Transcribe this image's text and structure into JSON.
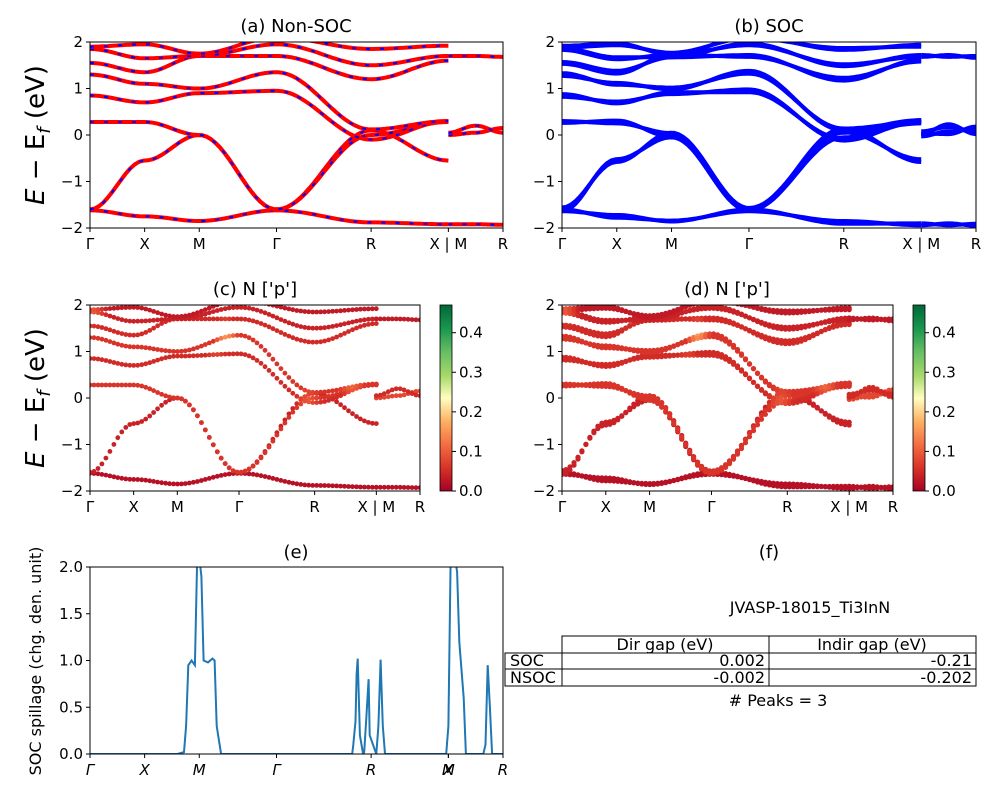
{
  "figure": {
    "material_id": "JVASP-18015_Ti3InN",
    "ylabel_energy_parts": [
      "E",
      " − E",
      "f",
      " (eV)"
    ],
    "colors": {
      "soc_blue": "#0000ff",
      "nsoc_red": "#ff0000",
      "spillage_line": "#1f77b4"
    }
  },
  "band_axes": {
    "ylim": [
      -2,
      2
    ],
    "yticks": [
      "−2",
      "−1",
      "0",
      "1",
      "2"
    ],
    "kpath_labels": [
      "Γ",
      "X",
      "M",
      "Γ",
      "R",
      "X | M",
      "R"
    ],
    "kpath_positions": [
      0,
      0.5,
      1.0,
      1.707,
      2.573,
      3.28,
      3.78
    ]
  },
  "panels": {
    "a": {
      "title": "(a) Non-SOC"
    },
    "b": {
      "title": "(b) SOC"
    },
    "c": {
      "title": "(c)  N ['p']"
    },
    "d": {
      "title": "(d) N ['p']"
    },
    "e": {
      "title": "(e)",
      "ylabel": "SOC spillage (chg. den. unit)"
    },
    "f": {
      "title": "(f)"
    }
  },
  "colorbar": {
    "range": [
      0.0,
      0.47
    ],
    "ticks": [
      "0.0",
      "0.1",
      "0.2",
      "0.3",
      "0.4"
    ],
    "tick_values": [
      0.0,
      0.1,
      0.2,
      0.3,
      0.4
    ]
  },
  "gap_table": {
    "header": [
      "",
      "Dir gap (eV)",
      "Indir gap (eV)"
    ],
    "rows": [
      {
        "label": "SOC",
        "dir": "0.002",
        "indir": "-0.21"
      },
      {
        "label": "NSOC",
        "dir": "-0.002",
        "indir": "-0.202"
      }
    ],
    "peaks_text": "# Peaks = 3"
  },
  "chart_data": [
    {
      "id": "band-structure",
      "type": "line",
      "title": "(a) Non-SOC / (b) SOC",
      "ylabel": "E − E_f (eV)",
      "ylim": [
        -2,
        2
      ],
      "bands": [
        {
          "name": "b1",
          "k": [
            0,
            0.5,
            1.0,
            1.707,
            2.573,
            3.28
          ],
          "E": [
            -1.62,
            -1.75,
            -1.85,
            -1.62,
            -1.88,
            -1.92
          ],
          "dE": [
            0.02,
            -0.03,
            0.01,
            -0.02,
            0.03,
            -0.02
          ]
        },
        {
          "name": "b2",
          "k": [
            0,
            0.5,
            1.0,
            1.707,
            2.573,
            3.28
          ],
          "E": [
            -1.6,
            -0.55,
            0.0,
            -1.6,
            0.1,
            -0.55
          ],
          "dE": [
            0.04,
            -0.03,
            0.05,
            0.03,
            -0.04,
            0.03
          ]
        },
        {
          "name": "b3",
          "k": [
            0,
            0.5,
            1.0,
            1.707,
            2.573,
            3.28
          ],
          "E": [
            0.28,
            0.28,
            0.0,
            -1.6,
            0.0,
            0.28
          ],
          "dE": [
            -0.02,
            0.03,
            -0.04,
            0.02,
            0.05,
            -0.03
          ]
        },
        {
          "name": "b4",
          "k": [
            0,
            0.5,
            1.0,
            1.707,
            2.573,
            3.28
          ],
          "E": [
            0.85,
            0.7,
            0.9,
            0.95,
            -0.1,
            0.3
          ],
          "dE": [
            0.03,
            -0.02,
            0.02,
            -0.03,
            0.02,
            -0.02
          ]
        },
        {
          "name": "b5",
          "k": [
            0,
            0.5,
            1.0,
            1.707,
            2.573,
            3.28
          ],
          "E": [
            1.3,
            1.1,
            1.0,
            1.35,
            0.12,
            0.3
          ],
          "dE": [
            -0.03,
            0.02,
            -0.02,
            0.03,
            -0.02,
            0.02
          ]
        },
        {
          "name": "b6",
          "k": [
            0,
            0.5,
            1.0,
            1.707,
            2.573,
            3.28
          ],
          "E": [
            1.55,
            1.35,
            1.7,
            1.7,
            1.2,
            1.6
          ],
          "dE": [
            0.02,
            0.03,
            -0.03,
            0.02,
            -0.03,
            0.02
          ]
        },
        {
          "name": "b7",
          "k": [
            0,
            0.5,
            1.0,
            1.707,
            2.573,
            3.28
          ],
          "E": [
            1.85,
            1.65,
            1.7,
            1.95,
            1.5,
            1.7
          ],
          "dE": [
            -0.02,
            -0.02,
            0.03,
            -0.02,
            0.02,
            -0.02
          ]
        },
        {
          "name": "b8",
          "k": [
            0,
            0.5,
            1.0,
            1.707,
            2.573,
            3.28
          ],
          "E": [
            1.9,
            1.95,
            1.75,
            2.1,
            1.85,
            1.92
          ],
          "dE": [
            0.02,
            0.02,
            -0.02,
            0.02,
            -0.02,
            0.02
          ]
        },
        {
          "name": "r1",
          "k": [
            3.28,
            3.53,
            3.78
          ],
          "E": [
            -1.92,
            -1.92,
            -1.93
          ],
          "dE": [
            0.02,
            -0.02,
            0.02
          ]
        },
        {
          "name": "r2",
          "k": [
            3.28,
            3.53,
            3.78
          ],
          "E": [
            0.0,
            0.05,
            0.15
          ],
          "dE": [
            -0.03,
            0.03,
            -0.03
          ]
        },
        {
          "name": "r3",
          "k": [
            3.28,
            3.53,
            3.78
          ],
          "E": [
            0.05,
            0.2,
            0.05
          ],
          "dE": [
            0.03,
            -0.03,
            0.03
          ]
        },
        {
          "name": "r4",
          "k": [
            3.28,
            3.53,
            3.78
          ],
          "E": [
            1.7,
            1.7,
            1.68
          ],
          "dE": [
            -0.02,
            0.02,
            -0.02
          ]
        }
      ]
    },
    {
      "id": "n-p-projection",
      "type": "scatter",
      "title": "(c)/(d) N ['p'] weight",
      "color_range": [
        0.0,
        0.47
      ],
      "band_weights": [
        0.02,
        0.04,
        0.06,
        0.05,
        0.06,
        0.05,
        0.04,
        0.03,
        0.02,
        0.08,
        0.05,
        0.03
      ],
      "hotspots": [
        {
          "k": 1.55,
          "E": 1.4,
          "w": 0.18
        },
        {
          "k": 1.45,
          "E": 0.7,
          "w": 0.12
        },
        {
          "k": 3.0,
          "E": 0.3,
          "w": 0.12
        },
        {
          "k": 2.5,
          "E": -0.05,
          "w": 0.1
        },
        {
          "k": 0.05,
          "E": 1.85,
          "w": 0.1
        }
      ]
    },
    {
      "id": "soc-spillage",
      "type": "line",
      "title": "(e)",
      "ylabel": "SOC spillage (chg. den. unit)",
      "ylim": [
        0.0,
        2.0
      ],
      "yticks": [
        "0.0",
        "0.5",
        "1.0",
        "1.5",
        "2.0"
      ],
      "xticks": [
        "Γ",
        "X",
        "M",
        "Γ",
        "R",
        "X",
        "M",
        "R"
      ],
      "xtick_positions": [
        0,
        0.5,
        1.0,
        1.707,
        2.573,
        3.28,
        3.28,
        3.78
      ],
      "x": [
        0,
        0.8,
        0.86,
        0.88,
        0.9,
        0.93,
        0.96,
        0.98,
        1.0,
        1.02,
        1.04,
        1.08,
        1.12,
        1.14,
        1.16,
        1.2,
        1.3,
        2.3,
        2.4,
        2.41,
        2.43,
        2.44,
        2.45,
        2.47,
        2.5,
        2.51,
        2.53,
        2.55,
        2.56,
        2.62,
        2.64,
        2.66,
        2.68,
        2.7,
        2.72,
        2.74,
        2.8,
        3.2,
        3.26,
        3.28,
        3.3,
        3.34,
        3.36,
        3.38,
        3.42,
        3.44,
        3.6,
        3.62,
        3.64,
        3.66,
        3.68,
        3.72,
        3.78
      ],
      "y": [
        0,
        0,
        0.02,
        0.3,
        0.95,
        1.0,
        0.95,
        2.05,
        2.1,
        1.9,
        1.0,
        0.98,
        1.02,
        1.0,
        0.3,
        0,
        0,
        0,
        0,
        0.1,
        0.35,
        0.85,
        1.02,
        0.2,
        0,
        0.02,
        0.4,
        0.8,
        0.2,
        0,
        0.3,
        1.01,
        0.3,
        0,
        0,
        0,
        0,
        0,
        0,
        0.3,
        2.05,
        2.1,
        1.95,
        1.2,
        0.6,
        0,
        0,
        0.1,
        0.95,
        0.5,
        0,
        0,
        0
      ]
    }
  ]
}
